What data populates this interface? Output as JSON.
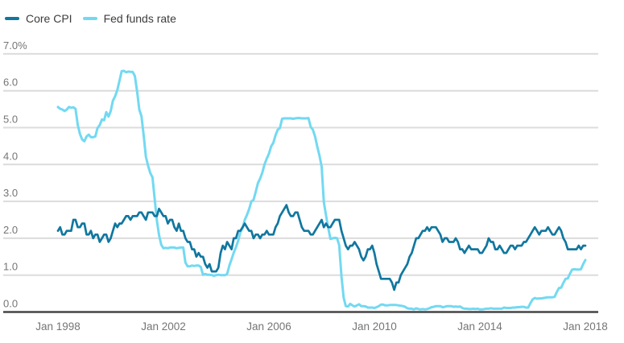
{
  "chart_data": {
    "type": "line",
    "x_axis": {
      "unit": "month",
      "start_label": "Jan 1998",
      "end_label": "Jan 2018",
      "ticks": [
        {
          "month_index": 0,
          "label": "Jan 1998"
        },
        {
          "month_index": 48,
          "label": "Jan 2002"
        },
        {
          "month_index": 96,
          "label": "Jan 2006"
        },
        {
          "month_index": 144,
          "label": "Jan 2010"
        },
        {
          "month_index": 192,
          "label": "Jan 2014"
        },
        {
          "month_index": 240,
          "label": "Jan 2018"
        }
      ]
    },
    "y_axis": {
      "ylim": [
        0,
        7
      ],
      "ticks": [
        {
          "value": 7,
          "label": "7.0%"
        },
        {
          "value": 6,
          "label": "6.0"
        },
        {
          "value": 5,
          "label": "5.0"
        },
        {
          "value": 4,
          "label": "4.0"
        },
        {
          "value": 3,
          "label": "3.0"
        },
        {
          "value": 2,
          "label": "2.0"
        },
        {
          "value": 1,
          "label": "1.0"
        },
        {
          "value": 0,
          "label": "0.0"
        }
      ]
    },
    "grid": "horizontal-only",
    "legend_position": "top-left",
    "style": {
      "grid_color": "#dcdcdc",
      "axis_color": "#454545",
      "tick_text_color": "#757575",
      "legend_text_color": "#3c3c3c",
      "background": "#ffffff"
    },
    "series": [
      {
        "name": "Core CPI",
        "color": "#10779f",
        "values": [
          2.2,
          2.3,
          2.1,
          2.1,
          2.2,
          2.2,
          2.2,
          2.5,
          2.5,
          2.3,
          2.3,
          2.4,
          2.4,
          2.1,
          2.1,
          2.2,
          2.0,
          2.1,
          2.1,
          1.9,
          2.0,
          2.1,
          2.1,
          1.9,
          2.0,
          2.2,
          2.4,
          2.3,
          2.4,
          2.4,
          2.5,
          2.6,
          2.6,
          2.5,
          2.6,
          2.6,
          2.6,
          2.7,
          2.7,
          2.6,
          2.5,
          2.7,
          2.7,
          2.7,
          2.6,
          2.6,
          2.8,
          2.7,
          2.6,
          2.6,
          2.4,
          2.5,
          2.5,
          2.3,
          2.2,
          2.4,
          2.2,
          2.2,
          2.0,
          1.9,
          1.9,
          1.7,
          1.7,
          1.5,
          1.6,
          1.5,
          1.5,
          1.3,
          1.2,
          1.3,
          1.1,
          1.1,
          1.1,
          1.2,
          1.6,
          1.8,
          1.7,
          1.9,
          1.8,
          1.7,
          2.0,
          2.0,
          2.2,
          2.2,
          2.3,
          2.4,
          2.3,
          2.2,
          2.2,
          2.0,
          2.1,
          2.1,
          2.0,
          2.1,
          2.1,
          2.2,
          2.1,
          2.1,
          2.1,
          2.3,
          2.4,
          2.6,
          2.7,
          2.8,
          2.9,
          2.7,
          2.6,
          2.6,
          2.7,
          2.7,
          2.5,
          2.3,
          2.2,
          2.2,
          2.2,
          2.1,
          2.1,
          2.2,
          2.3,
          2.4,
          2.5,
          2.3,
          2.4,
          2.3,
          2.3,
          2.4,
          2.5,
          2.5,
          2.5,
          2.2,
          2.0,
          1.8,
          1.7,
          1.8,
          1.8,
          1.9,
          1.8,
          1.7,
          1.5,
          1.4,
          1.5,
          1.7,
          1.7,
          1.8,
          1.6,
          1.3,
          1.1,
          0.9,
          0.9,
          0.9,
          0.9,
          0.9,
          0.8,
          0.6,
          0.8,
          0.8,
          1.0,
          1.1,
          1.2,
          1.3,
          1.5,
          1.6,
          1.8,
          2.0,
          2.0,
          2.1,
          2.2,
          2.2,
          2.3,
          2.2,
          2.3,
          2.3,
          2.3,
          2.2,
          2.1,
          1.9,
          2.0,
          2.0,
          1.9,
          1.9,
          1.9,
          2.0,
          1.9,
          1.7,
          1.7,
          1.6,
          1.7,
          1.8,
          1.7,
          1.7,
          1.7,
          1.7,
          1.6,
          1.6,
          1.7,
          1.8,
          2.0,
          1.9,
          1.9,
          1.7,
          1.7,
          1.8,
          1.7,
          1.6,
          1.6,
          1.7,
          1.8,
          1.8,
          1.7,
          1.8,
          1.8,
          1.8,
          1.9,
          1.9,
          2.0,
          2.1,
          2.2,
          2.3,
          2.2,
          2.1,
          2.2,
          2.2,
          2.2,
          2.3,
          2.2,
          2.1,
          2.1,
          2.2,
          2.3,
          2.2,
          2.0,
          1.9,
          1.7,
          1.7,
          1.7,
          1.7,
          1.7,
          1.8,
          1.7,
          1.8,
          1.8
        ]
      },
      {
        "name": "Fed funds rate",
        "color": "#72d9f2",
        "values": [
          5.56,
          5.51,
          5.49,
          5.45,
          5.49,
          5.56,
          5.54,
          5.55,
          5.51,
          5.07,
          4.83,
          4.68,
          4.63,
          4.76,
          4.81,
          4.74,
          4.74,
          4.76,
          4.99,
          5.07,
          5.22,
          5.2,
          5.42,
          5.3,
          5.45,
          5.73,
          5.85,
          6.02,
          6.27,
          6.53,
          6.54,
          6.5,
          6.52,
          6.51,
          6.51,
          6.4,
          5.98,
          5.49,
          5.31,
          4.8,
          4.21,
          3.97,
          3.77,
          3.65,
          3.07,
          2.49,
          2.09,
          1.82,
          1.73,
          1.74,
          1.73,
          1.75,
          1.75,
          1.75,
          1.73,
          1.74,
          1.75,
          1.75,
          1.34,
          1.24,
          1.24,
          1.26,
          1.25,
          1.26,
          1.26,
          1.22,
          1.01,
          1.03,
          1.01,
          1.01,
          1.0,
          0.98,
          1.0,
          1.01,
          1.0,
          1.0,
          1.0,
          1.03,
          1.26,
          1.43,
          1.61,
          1.76,
          1.93,
          2.16,
          2.28,
          2.5,
          2.63,
          2.79,
          3.0,
          3.04,
          3.26,
          3.5,
          3.62,
          3.78,
          4.0,
          4.16,
          4.29,
          4.49,
          4.59,
          4.79,
          4.94,
          4.99,
          5.24,
          5.25,
          5.25,
          5.25,
          5.25,
          5.24,
          5.25,
          5.26,
          5.26,
          5.25,
          5.25,
          5.25,
          5.26,
          5.02,
          4.94,
          4.76,
          4.49,
          4.24,
          3.94,
          2.98,
          2.61,
          2.28,
          1.98,
          2.0,
          2.01,
          2.0,
          1.81,
          0.97,
          0.39,
          0.16,
          0.15,
          0.22,
          0.18,
          0.15,
          0.18,
          0.21,
          0.16,
          0.16,
          0.15,
          0.12,
          0.12,
          0.12,
          0.11,
          0.13,
          0.16,
          0.2,
          0.2,
          0.18,
          0.18,
          0.19,
          0.19,
          0.19,
          0.19,
          0.18,
          0.17,
          0.16,
          0.14,
          0.1,
          0.09,
          0.09,
          0.07,
          0.1,
          0.08,
          0.07,
          0.08,
          0.07,
          0.08,
          0.1,
          0.13,
          0.14,
          0.16,
          0.16,
          0.16,
          0.13,
          0.14,
          0.16,
          0.16,
          0.16,
          0.14,
          0.15,
          0.14,
          0.15,
          0.11,
          0.09,
          0.09,
          0.08,
          0.08,
          0.09,
          0.08,
          0.09,
          0.07,
          0.07,
          0.08,
          0.09,
          0.09,
          0.1,
          0.09,
          0.09,
          0.09,
          0.09,
          0.09,
          0.12,
          0.11,
          0.11,
          0.11,
          0.12,
          0.12,
          0.13,
          0.13,
          0.14,
          0.14,
          0.12,
          0.12,
          0.24,
          0.34,
          0.38,
          0.36,
          0.37,
          0.37,
          0.38,
          0.39,
          0.4,
          0.4,
          0.4,
          0.41,
          0.54,
          0.65,
          0.66,
          0.79,
          0.9,
          0.91,
          1.04,
          1.15,
          1.16,
          1.15,
          1.15,
          1.16,
          1.3,
          1.41
        ]
      }
    ]
  }
}
